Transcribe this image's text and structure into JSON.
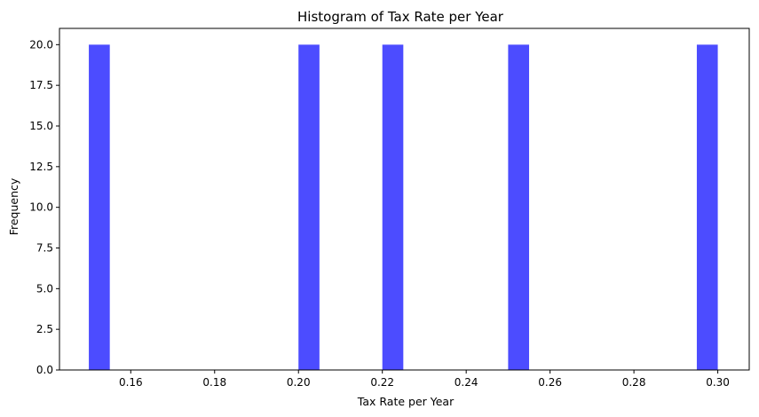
{
  "chart_data": {
    "type": "bar",
    "title": "Histogram of Tax Rate per Year",
    "xlabel": "Tax Rate per Year",
    "ylabel": "Frequency",
    "xlim": [
      0.143,
      0.3075
    ],
    "ylim": [
      0,
      21
    ],
    "xticks": [
      0.16,
      0.18,
      0.2,
      0.22,
      0.24,
      0.26,
      0.28,
      0.3
    ],
    "xtick_labels": [
      "0.16",
      "0.18",
      "0.20",
      "0.22",
      "0.24",
      "0.26",
      "0.28",
      "0.30"
    ],
    "yticks": [
      0,
      2.5,
      5,
      7.5,
      10,
      12.5,
      15,
      17.5,
      20
    ],
    "ytick_labels": [
      "0.0",
      "2.5",
      "5.0",
      "7.5",
      "10.0",
      "12.5",
      "15.0",
      "17.5",
      "20.0"
    ],
    "bins": [
      {
        "x0": 0.15,
        "x1": 0.155,
        "count": 20
      },
      {
        "x0": 0.2,
        "x1": 0.205,
        "count": 20
      },
      {
        "x0": 0.22,
        "x1": 0.225,
        "count": 20
      },
      {
        "x0": 0.25,
        "x1": 0.255,
        "count": 20
      },
      {
        "x0": 0.295,
        "x1": 0.3,
        "count": 20
      }
    ],
    "bar_color": "#0000ff",
    "bar_opacity": 0.7,
    "grid": false,
    "legend": "none"
  }
}
